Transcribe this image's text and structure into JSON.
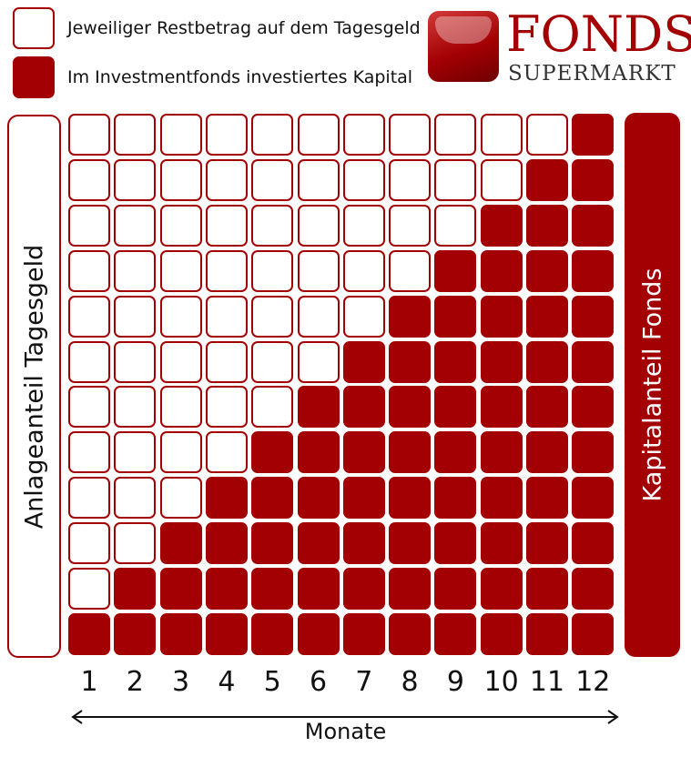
{
  "legend": {
    "white_label": "Jeweiliger Restbetrag auf dem Tagesgeld",
    "red_label": "Im Investmentfonds investiertes Kapital"
  },
  "logo": {
    "title": "FONDS",
    "subtitle": "SUPERMARKT"
  },
  "left_bar_label": "Anlageanteil Tagesgeld",
  "right_bar_label": "Kapitalanteil Fonds",
  "months": [
    "1",
    "2",
    "3",
    "4",
    "5",
    "6",
    "7",
    "8",
    "9",
    "10",
    "11",
    "12"
  ],
  "axis_label": "Monate",
  "grid": {
    "rows": 12,
    "columns": 12,
    "red_cells_per_month": [
      1,
      2,
      3,
      4,
      5,
      6,
      7,
      8,
      9,
      10,
      11,
      12
    ]
  },
  "colors": {
    "accent": "#a30003",
    "empty": "#ffffff"
  }
}
